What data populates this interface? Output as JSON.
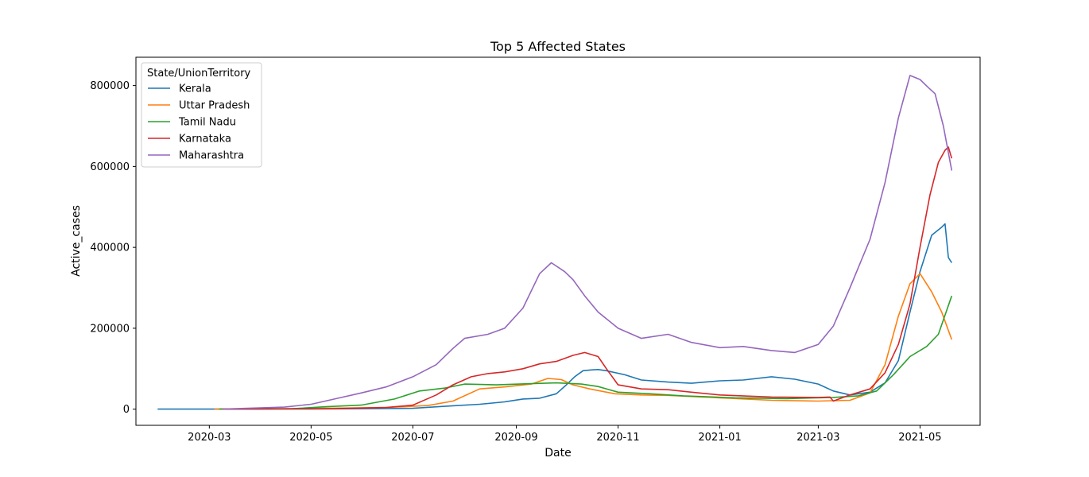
{
  "chart_data": {
    "type": "line",
    "title": "Top 5 Affected States",
    "xlabel": "Date",
    "ylabel": "Active_cases",
    "xlim": [
      "2020-01-17",
      "2021-06-06"
    ],
    "ylim": [
      -40000,
      870000
    ],
    "x_ticks": [
      "2020-03",
      "2020-05",
      "2020-07",
      "2020-09",
      "2020-11",
      "2021-01",
      "2021-03",
      "2021-05"
    ],
    "y_ticks": [
      0,
      200000,
      400000,
      600000,
      800000
    ],
    "y_tick_labels": [
      "0",
      "200000",
      "400000",
      "600000",
      "800000"
    ],
    "grid": false,
    "legend": {
      "title": "State/UnionTerritory",
      "position": "top-left"
    },
    "series": [
      {
        "name": "Kerala",
        "color": "#1f77b4",
        "x": [
          "2020-01-30",
          "2020-03-01",
          "2020-05-01",
          "2020-07-01",
          "2020-07-20",
          "2020-08-10",
          "2020-08-25",
          "2020-09-05",
          "2020-09-15",
          "2020-09-25",
          "2020-10-01",
          "2020-10-06",
          "2020-10-11",
          "2020-10-16",
          "2020-10-20",
          "2020-10-25",
          "2020-11-05",
          "2020-11-15",
          "2020-12-01",
          "2020-12-15",
          "2021-01-01",
          "2021-01-15",
          "2021-02-01",
          "2021-02-15",
          "2021-03-01",
          "2021-03-10",
          "2021-03-20",
          "2021-04-01",
          "2021-04-10",
          "2021-04-18",
          "2021-04-25",
          "2021-05-01",
          "2021-05-08",
          "2021-05-14",
          "2021-05-16",
          "2021-05-18",
          "2021-05-20"
        ],
        "y": [
          0,
          0,
          500,
          2000,
          7000,
          12000,
          18000,
          25000,
          27000,
          38000,
          60000,
          80000,
          95000,
          97000,
          98000,
          95000,
          85000,
          72000,
          67000,
          64000,
          70000,
          72000,
          80000,
          74000,
          62000,
          45000,
          35000,
          42000,
          65000,
          120000,
          240000,
          340000,
          430000,
          450000,
          458000,
          375000,
          362000
        ]
      },
      {
        "name": "Uttar Pradesh",
        "color": "#ff7f0e",
        "x": [
          "2020-03-04",
          "2020-04-15",
          "2020-05-15",
          "2020-06-15",
          "2020-07-10",
          "2020-07-25",
          "2020-08-10",
          "2020-08-25",
          "2020-09-10",
          "2020-09-20",
          "2020-09-28",
          "2020-10-05",
          "2020-10-15",
          "2020-10-30",
          "2020-11-15",
          "2020-12-01",
          "2021-01-01",
          "2021-02-01",
          "2021-03-01",
          "2021-03-20",
          "2021-04-01",
          "2021-04-10",
          "2021-04-18",
          "2021-04-25",
          "2021-05-01",
          "2021-05-08",
          "2021-05-14",
          "2021-05-20"
        ],
        "y": [
          0,
          1000,
          2500,
          4000,
          9000,
          20000,
          50000,
          55000,
          62000,
          76000,
          73000,
          60000,
          50000,
          38000,
          35000,
          34000,
          28000,
          22000,
          20000,
          22000,
          40000,
          110000,
          230000,
          310000,
          335000,
          290000,
          240000,
          172000
        ]
      },
      {
        "name": "Tamil Nadu",
        "color": "#2ca02c",
        "x": [
          "2020-03-07",
          "2020-04-20",
          "2020-05-10",
          "2020-05-31",
          "2020-06-20",
          "2020-07-05",
          "2020-07-20",
          "2020-08-01",
          "2020-08-20",
          "2020-09-10",
          "2020-09-25",
          "2020-10-10",
          "2020-10-20",
          "2020-11-01",
          "2020-11-20",
          "2020-12-10",
          "2021-01-10",
          "2021-02-10",
          "2021-03-10",
          "2021-03-25",
          "2021-04-05",
          "2021-04-15",
          "2021-04-25",
          "2021-05-05",
          "2021-05-12",
          "2021-05-20"
        ],
        "y": [
          0,
          1000,
          6000,
          10000,
          25000,
          45000,
          52000,
          62000,
          60000,
          63000,
          65000,
          62000,
          56000,
          42000,
          38000,
          33000,
          28000,
          26000,
          29000,
          33000,
          45000,
          85000,
          130000,
          155000,
          185000,
          280000
        ]
      },
      {
        "name": "Karnataka",
        "color": "#d62728",
        "x": [
          "2020-03-09",
          "2020-05-15",
          "2020-06-15",
          "2020-07-01",
          "2020-07-15",
          "2020-07-25",
          "2020-08-05",
          "2020-08-15",
          "2020-08-25",
          "2020-09-05",
          "2020-09-15",
          "2020-09-25",
          "2020-10-05",
          "2020-10-12",
          "2020-10-20",
          "2020-10-25",
          "2020-11-01",
          "2020-11-15",
          "2020-12-01",
          "2020-12-15",
          "2021-01-01",
          "2021-02-01",
          "2021-03-01",
          "2021-03-08",
          "2021-03-10",
          "2021-03-20",
          "2021-04-01",
          "2021-04-10",
          "2021-04-18",
          "2021-04-25",
          "2021-05-01",
          "2021-05-07",
          "2021-05-12",
          "2021-05-16",
          "2021-05-18",
          "2021-05-20"
        ],
        "y": [
          0,
          1000,
          4000,
          10000,
          35000,
          60000,
          80000,
          88000,
          92000,
          100000,
          112000,
          118000,
          133000,
          140000,
          130000,
          100000,
          60000,
          50000,
          48000,
          42000,
          35000,
          30000,
          29000,
          30000,
          20000,
          35000,
          50000,
          90000,
          160000,
          260000,
          400000,
          530000,
          610000,
          640000,
          648000,
          620000
        ]
      },
      {
        "name": "Maharashtra",
        "color": "#9467bd",
        "x": [
          "2020-03-09",
          "2020-04-15",
          "2020-05-01",
          "2020-05-15",
          "2020-05-31",
          "2020-06-15",
          "2020-07-01",
          "2020-07-15",
          "2020-07-25",
          "2020-08-01",
          "2020-08-15",
          "2020-08-25",
          "2020-09-05",
          "2020-09-15",
          "2020-09-22",
          "2020-09-30",
          "2020-10-05",
          "2020-10-12",
          "2020-10-20",
          "2020-11-01",
          "2020-11-15",
          "2020-12-01",
          "2020-12-15",
          "2021-01-01",
          "2021-01-15",
          "2021-02-01",
          "2021-02-15",
          "2021-03-01",
          "2021-03-10",
          "2021-03-20",
          "2021-04-01",
          "2021-04-10",
          "2021-04-18",
          "2021-04-25",
          "2021-05-01",
          "2021-05-06",
          "2021-05-10",
          "2021-05-15",
          "2021-05-20"
        ],
        "y": [
          0,
          5000,
          12000,
          25000,
          40000,
          55000,
          80000,
          110000,
          150000,
          175000,
          185000,
          200000,
          250000,
          335000,
          362000,
          340000,
          320000,
          280000,
          240000,
          200000,
          175000,
          185000,
          165000,
          152000,
          155000,
          145000,
          140000,
          160000,
          205000,
          300000,
          420000,
          560000,
          720000,
          825000,
          815000,
          795000,
          780000,
          700000,
          590000
        ]
      }
    ]
  }
}
